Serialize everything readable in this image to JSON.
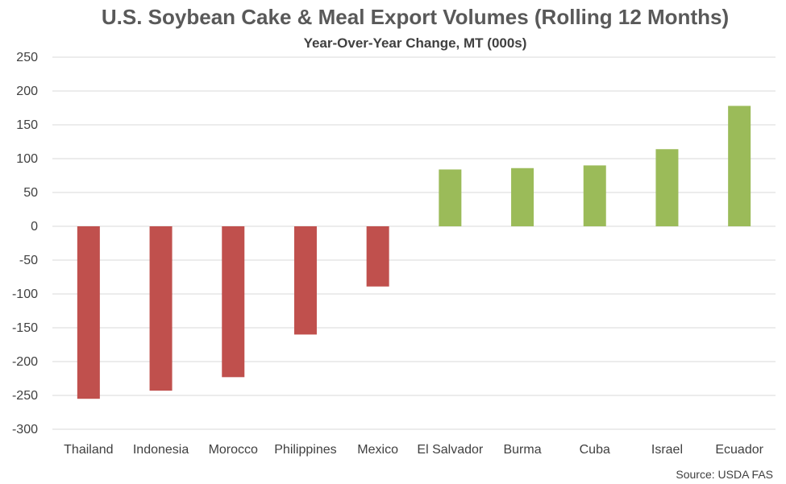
{
  "chart_data": {
    "type": "bar",
    "title": "U.S. Soybean Cake & Meal Export Volumes (Rolling 12 Months)",
    "subtitle": "Year-Over-Year Change, MT (000s)",
    "xlabel": "",
    "ylabel": "",
    "categories": [
      "Thailand",
      "Indonesia",
      "Morocco",
      "Philippines",
      "Mexico",
      "El Salvador",
      "Burma",
      "Cuba",
      "Israel",
      "Ecuador"
    ],
    "values": [
      -255,
      -243,
      -223,
      -160,
      -89,
      84,
      86,
      90,
      114,
      178
    ],
    "ylim": [
      -300,
      250
    ],
    "yticks": [
      250,
      200,
      150,
      100,
      50,
      0,
      -50,
      -100,
      -150,
      -200,
      -250,
      -300
    ],
    "grid": true,
    "legend": "none",
    "colors": {
      "negative": "#C0504D",
      "positive": "#9BBB59",
      "grid": "#D9D9D9",
      "text": "#404040"
    },
    "source": "Source: USDA FAS"
  }
}
